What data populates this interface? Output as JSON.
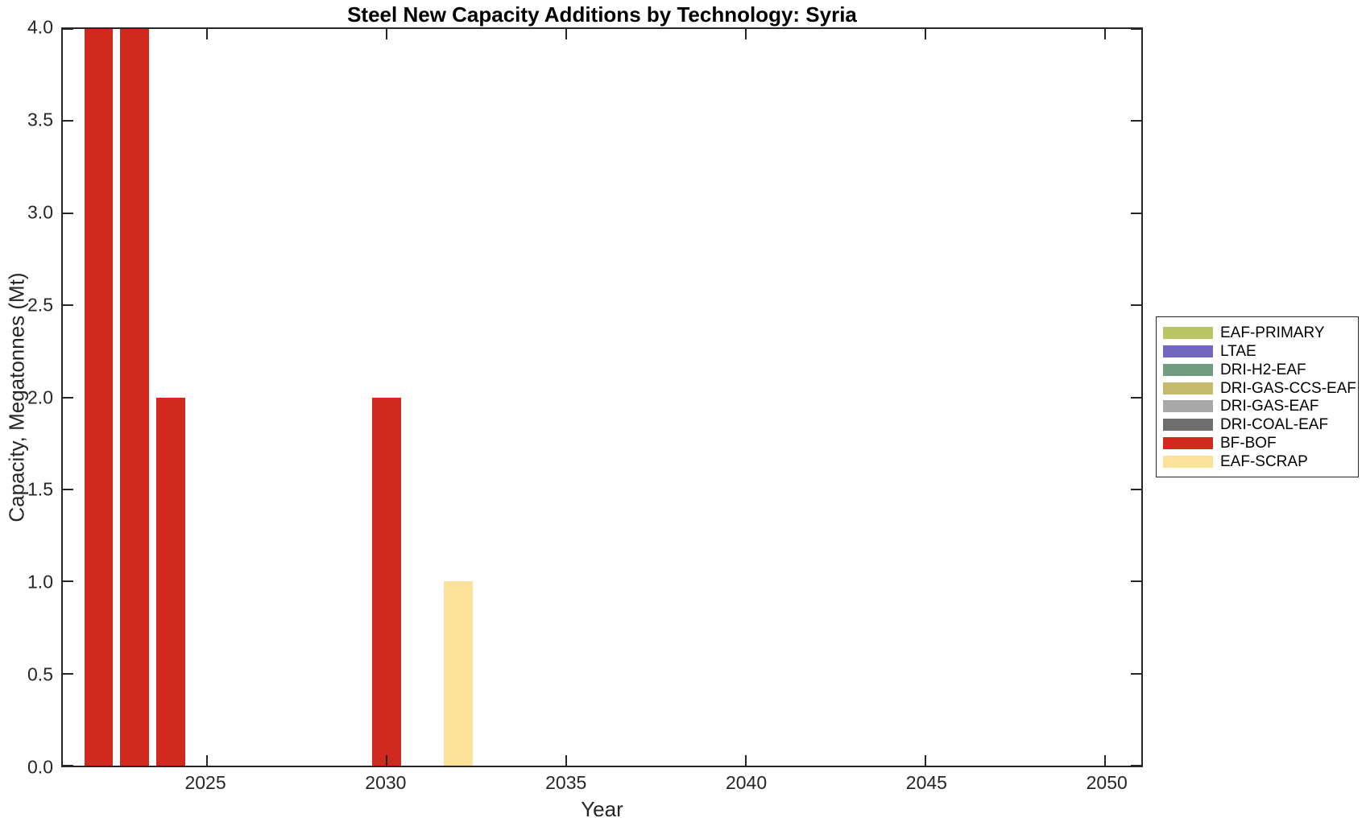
{
  "chart_data": {
    "type": "bar",
    "title": "Steel New Capacity Additions by Technology: Syria",
    "xlabel": "Year",
    "ylabel": "Capacity, Megatonnes (Mt)",
    "xlim": [
      2021,
      2051
    ],
    "ylim": [
      0,
      4
    ],
    "grid": false,
    "legend_position": "right-outside",
    "axis_color": "#262626",
    "bar_width_years": 0.8,
    "x_ticks": [
      2025,
      2030,
      2035,
      2040,
      2045,
      2050
    ],
    "y_ticks": [
      {
        "v": 0,
        "label": "0.0"
      },
      {
        "v": 0.5,
        "label": "0.5"
      },
      {
        "v": 1,
        "label": "1.0"
      },
      {
        "v": 1.5,
        "label": "1.5"
      },
      {
        "v": 2,
        "label": "2.0"
      },
      {
        "v": 2.5,
        "label": "2.5"
      },
      {
        "v": 3,
        "label": "3.0"
      },
      {
        "v": 3.5,
        "label": "3.5"
      },
      {
        "v": 4,
        "label": "4.0"
      }
    ],
    "legend": [
      {
        "label": "EAF-PRIMARY",
        "color": "#b9c565"
      },
      {
        "label": "LTAE",
        "color": "#7166bf"
      },
      {
        "label": "DRI-H2-EAF",
        "color": "#739b80"
      },
      {
        "label": "DRI-GAS-CCS-EAF",
        "color": "#c5ba6c"
      },
      {
        "label": "DRI-GAS-EAF",
        "color": "#a8a8a8"
      },
      {
        "label": "DRI-COAL-EAF",
        "color": "#6e6e6e"
      },
      {
        "label": "BF-BOF",
        "color": "#d2291f"
      },
      {
        "label": "EAF-SCRAP",
        "color": "#fce199"
      }
    ],
    "bars": [
      {
        "x": 2022,
        "series": "BF-BOF",
        "value": 4.0
      },
      {
        "x": 2023,
        "series": "BF-BOF",
        "value": 4.0
      },
      {
        "x": 2024,
        "series": "BF-BOF",
        "value": 2.0
      },
      {
        "x": 2030,
        "series": "BF-BOF",
        "value": 2.0
      },
      {
        "x": 2032,
        "series": "EAF-SCRAP",
        "value": 1.0
      }
    ]
  }
}
